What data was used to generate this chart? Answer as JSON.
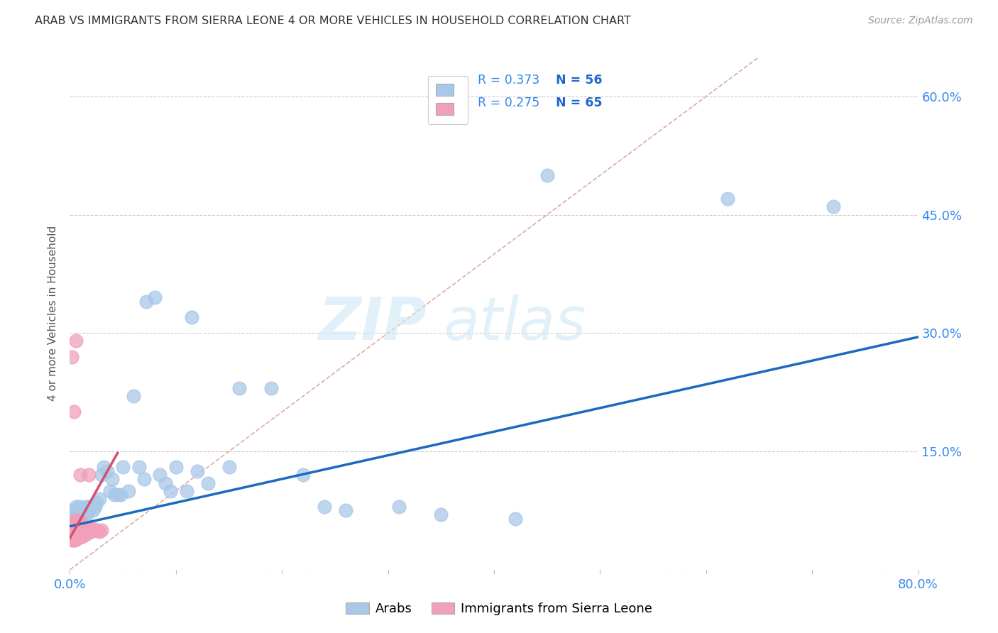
{
  "title": "ARAB VS IMMIGRANTS FROM SIERRA LEONE 4 OR MORE VEHICLES IN HOUSEHOLD CORRELATION CHART",
  "source": "Source: ZipAtlas.com",
  "ylabel": "4 or more Vehicles in Household",
  "xlim": [
    0.0,
    0.8
  ],
  "ylim": [
    0.0,
    0.65
  ],
  "xtick_positions": [
    0.0,
    0.1,
    0.2,
    0.3,
    0.4,
    0.5,
    0.6,
    0.7,
    0.8
  ],
  "ytick_positions": [
    0.0,
    0.15,
    0.3,
    0.45,
    0.6
  ],
  "color_arab": "#a8c8e8",
  "color_sl": "#f0a0b8",
  "color_arab_line": "#1a6abf",
  "color_sl_line": "#d45070",
  "color_diag": "#ddaaaa",
  "legend_text_color": "#3388ee",
  "legend_N_color": "#2266cc",
  "arab_line_x": [
    0.0,
    0.8
  ],
  "arab_line_y": [
    0.055,
    0.295
  ],
  "sl_line_x": [
    0.0,
    0.045
  ],
  "sl_line_y": [
    0.04,
    0.148
  ],
  "arab_x": [
    0.002,
    0.003,
    0.004,
    0.005,
    0.006,
    0.007,
    0.008,
    0.009,
    0.01,
    0.01,
    0.012,
    0.013,
    0.015,
    0.016,
    0.017,
    0.018,
    0.02,
    0.022,
    0.024,
    0.025,
    0.028,
    0.03,
    0.032,
    0.035,
    0.038,
    0.04,
    0.042,
    0.045,
    0.048,
    0.05,
    0.055,
    0.06,
    0.065,
    0.07,
    0.072,
    0.08,
    0.085,
    0.09,
    0.095,
    0.1,
    0.11,
    0.115,
    0.12,
    0.13,
    0.15,
    0.16,
    0.19,
    0.22,
    0.24,
    0.26,
    0.31,
    0.35,
    0.42,
    0.45,
    0.62,
    0.72
  ],
  "arab_y": [
    0.065,
    0.07,
    0.075,
    0.06,
    0.08,
    0.07,
    0.075,
    0.08,
    0.065,
    0.075,
    0.075,
    0.07,
    0.08,
    0.07,
    0.075,
    0.08,
    0.08,
    0.075,
    0.08,
    0.085,
    0.09,
    0.12,
    0.13,
    0.125,
    0.1,
    0.115,
    0.095,
    0.095,
    0.095,
    0.13,
    0.1,
    0.22,
    0.13,
    0.115,
    0.34,
    0.345,
    0.12,
    0.11,
    0.1,
    0.13,
    0.1,
    0.32,
    0.125,
    0.11,
    0.13,
    0.23,
    0.23,
    0.12,
    0.08,
    0.075,
    0.08,
    0.07,
    0.065,
    0.5,
    0.47,
    0.46
  ],
  "sl_x": [
    0.001,
    0.001,
    0.002,
    0.002,
    0.002,
    0.002,
    0.003,
    0.003,
    0.003,
    0.003,
    0.003,
    0.004,
    0.004,
    0.004,
    0.004,
    0.004,
    0.005,
    0.005,
    0.005,
    0.005,
    0.005,
    0.005,
    0.006,
    0.006,
    0.006,
    0.006,
    0.007,
    0.007,
    0.007,
    0.007,
    0.008,
    0.008,
    0.008,
    0.008,
    0.009,
    0.009,
    0.009,
    0.01,
    0.01,
    0.01,
    0.011,
    0.011,
    0.012,
    0.012,
    0.012,
    0.013,
    0.013,
    0.014,
    0.015,
    0.015,
    0.016,
    0.017,
    0.018,
    0.019,
    0.02,
    0.021,
    0.022,
    0.025,
    0.028,
    0.03,
    0.002,
    0.004,
    0.006,
    0.01,
    0.018
  ],
  "sl_y": [
    0.04,
    0.045,
    0.038,
    0.042,
    0.05,
    0.055,
    0.038,
    0.042,
    0.048,
    0.052,
    0.058,
    0.04,
    0.045,
    0.05,
    0.055,
    0.06,
    0.038,
    0.042,
    0.048,
    0.052,
    0.058,
    0.063,
    0.04,
    0.045,
    0.05,
    0.058,
    0.042,
    0.048,
    0.055,
    0.062,
    0.04,
    0.045,
    0.052,
    0.06,
    0.042,
    0.048,
    0.058,
    0.042,
    0.05,
    0.06,
    0.045,
    0.055,
    0.042,
    0.05,
    0.058,
    0.045,
    0.055,
    0.048,
    0.045,
    0.052,
    0.048,
    0.05,
    0.052,
    0.048,
    0.048,
    0.05,
    0.052,
    0.05,
    0.048,
    0.05,
    0.27,
    0.2,
    0.29,
    0.12,
    0.12
  ]
}
